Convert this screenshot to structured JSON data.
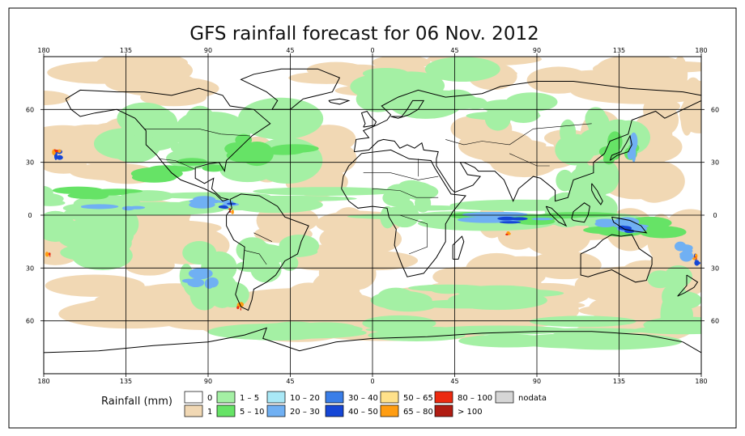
{
  "title": "GFS rainfall forecast for 06 Nov. 2012",
  "longitude_ticks": [
    "180",
    "135",
    "90",
    "45",
    "0",
    "45",
    "90",
    "135",
    "180"
  ],
  "latitude_ticks": [
    "60",
    "30",
    "0",
    "30",
    "60"
  ],
  "legend": {
    "title": "Rainfall (mm)",
    "items": [
      {
        "label": "0",
        "color": "#ffffff"
      },
      {
        "label": "1",
        "color": "#f1d8b4"
      },
      {
        "label": "1 – 5",
        "color": "#a4f0a4"
      },
      {
        "label": "5 – 10",
        "color": "#66e366"
      },
      {
        "label": "10 – 20",
        "color": "#a9e8f6"
      },
      {
        "label": "20 – 30",
        "color": "#70b0f3"
      },
      {
        "label": "30 – 40",
        "color": "#3a7ee8"
      },
      {
        "label": "40 – 50",
        "color": "#1546d6"
      },
      {
        "label": "50 – 65",
        "color": "#ffe18a"
      },
      {
        "label": "65 – 80",
        "color": "#ff9d12"
      },
      {
        "label": "80 – 100",
        "color": "#ec2a10"
      },
      {
        "label": "> 100",
        "color": "#b01c12"
      },
      {
        "label": "nodata",
        "color": "#d6d6d6"
      }
    ]
  }
}
